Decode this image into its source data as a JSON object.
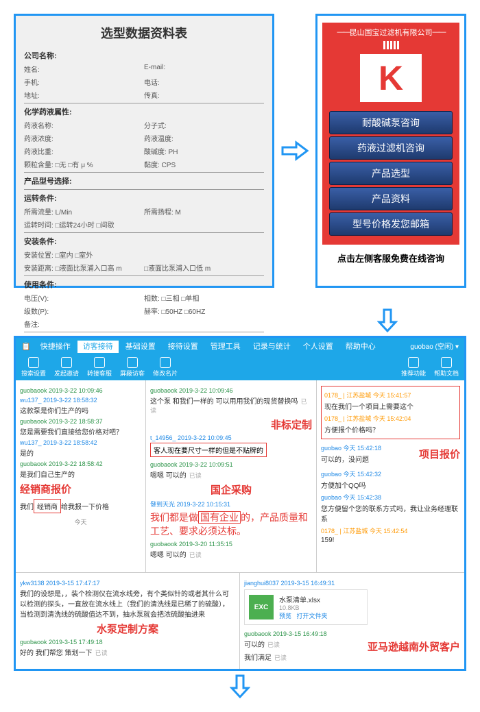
{
  "form": {
    "title": "选型数据资料表",
    "sections": {
      "s1": {
        "title": "公司名称:",
        "rows": [
          [
            "姓名:",
            "E-mail:"
          ],
          [
            "手机:",
            "电话:"
          ],
          [
            "地址:",
            "传真:"
          ]
        ]
      },
      "s2": {
        "title": "化学药液属性:",
        "rows": [
          [
            "药液名称:",
            "分子式:"
          ],
          [
            "药液浓度:",
            "药液温度:"
          ],
          [
            "药液比重:",
            "酸碱度: PH"
          ],
          [
            "颗粒含量: □无 □有 μ %",
            "黏度: CPS"
          ]
        ]
      },
      "s3": {
        "title": "产品型号选择:"
      },
      "s4": {
        "title": "运转条件:",
        "rows": [
          [
            "所需流量: L/Min",
            "所需扬程: M"
          ],
          [
            "运转时间: □运转24小时 □间歇",
            ""
          ]
        ]
      },
      "s5": {
        "title": "安装条件:",
        "rows": [
          [
            "安装位置: □室内 □室外",
            ""
          ],
          [
            "安装距离: □液面比泵浦入口高 m",
            "□液面比泵浦入口低 m"
          ]
        ]
      },
      "s6": {
        "title": "使用条件:",
        "rows": [
          [
            "电压(V):",
            "相数: □三相 □单相"
          ],
          [
            "级数(P):",
            "赫率: □50HZ □60HZ"
          ],
          [
            "备注:",
            ""
          ]
        ]
      }
    }
  },
  "right": {
    "company": "昆山国宝过滤机有限公司",
    "logo": "K",
    "buttons": [
      "耐酸碱泵咨询",
      "药液过滤机咨询",
      "产品选型",
      "产品资料",
      "型号价格发您邮箱"
    ],
    "below": "点击左侧客服免费在线咨询"
  },
  "chat": {
    "tabs": [
      "快捷操作",
      "访客接待",
      "基础设置",
      "接待设置",
      "管理工具",
      "记录与统计",
      "个人设置",
      "帮助中心"
    ],
    "active_tab": 1,
    "user_badge": "guobao (空闲) ▾",
    "toolbar": [
      "搜索设置",
      "发起邀请",
      "转接客服",
      "屏蔽访客",
      "修改名片"
    ],
    "toolbar_right": [
      "推荐功能",
      "帮助文档"
    ],
    "left_col": [
      {
        "meta": "guobaook 2019-3-22 10:09:46",
        "metaClass": "msg-meta"
      },
      {
        "meta": "wu137_ 2019-3-22 18:58:32",
        "metaClass": "msg-meta user",
        "text": "这款泵是你们生产的吗"
      },
      {
        "meta": "guobaook 2019-3-22 18:58:37",
        "metaClass": "msg-meta",
        "text": "您是需要我们直接给您价格对吧？"
      },
      {
        "meta": "wu137_ 2019-3-22 18:58:42",
        "metaClass": "msg-meta user",
        "text": "是的"
      },
      {
        "meta": "guobaook 2019-3-22 18:58:42",
        "metaClass": "msg-meta",
        "text": "是我们自己生产的"
      }
    ],
    "left_label": "经销商报价",
    "left_boxed": "经销商",
    "left_tail": "我们____给我报一下价格",
    "left_today": "今天",
    "mid_col": {
      "line1_meta": "guobaook 2019-3-22 10:09:46",
      "line1": "这个泵 和我们一样的 可以用用我们的现货替换吗",
      "label1": "非标定制",
      "meta2": "t_14956_ 2019-3-22 10:09:45",
      "boxed": "客人现在要尺寸一样的但是不贴牌的",
      "meta3": "guobaook 2019-3-22 10:09:51",
      "line3": "嗯嗯 可以的",
      "label2": "国企采购",
      "meta4": "發到天光 2019-3-22 10:15:31",
      "red_big": "我们都是做<u>国有企业</u>的，产品质量和工艺、要求必须达标。",
      "meta5": "guobaook 2019-3-20 11:35:15",
      "line5": "嗯嗯 可以的"
    },
    "right_col": {
      "r1_meta": "0178_ | 江苏盐城 今天 15:41:57",
      "r1_text": "现在我们一个项目上需要这个",
      "r2_meta": "0178_ | 江苏盐城 今天 15:42:04",
      "r2_text": "方便报个价格吗？",
      "r3_meta": "guobao 今天 15:42:18",
      "r3_text": "可以的，没问题",
      "label": "项目报价",
      "r4_meta": "guobao 今天 15:42:32",
      "r4_text": "方便加个QQ吗",
      "r5_meta": "guobao 今天 15:42:38",
      "r5_text": "您方便留个您的联系方式吗，我让业务经理联系",
      "r6_meta": "0178_ | 江苏盐城 今天 15:42:54",
      "r6_text": "159!"
    },
    "bottom_left": {
      "meta1": "ykw3138 2019-3-15 17:47:17",
      "text1": "我们的设想是，，装个检测仪在流水线旁，有个类似针的或者其什么可以检测的探头，一直放在流水线上（我们的清洗线是已稀了的硫酸），当检测到清洗线的硫酸值达不到，抽水泵就会把浓硫酸抽进来",
      "label": "水泵定制方案",
      "meta2": "guobaook 2019-3-15 17:49:18",
      "text2": "好的 我们帮您 策划一下"
    },
    "bottom_right": {
      "meta1": "jianghui8037 2019-3-15 16:49:31",
      "file_name": "水泵清单.xlsx",
      "file_size": "10.8KB",
      "file_icon": "EXC",
      "file_preview": "预览",
      "file_open": "打开文件夹",
      "meta2": "guobaook 2019-3-15 16:49:18",
      "text2": "可以的",
      "label": "亚马逊越南外贸客户",
      "text3": "我们满足"
    },
    "read": "已读"
  },
  "colors": {
    "blue": "#2196f3",
    "headerBlue": "#1ea7e8",
    "red": "#e53935",
    "green": "#2b9348"
  }
}
